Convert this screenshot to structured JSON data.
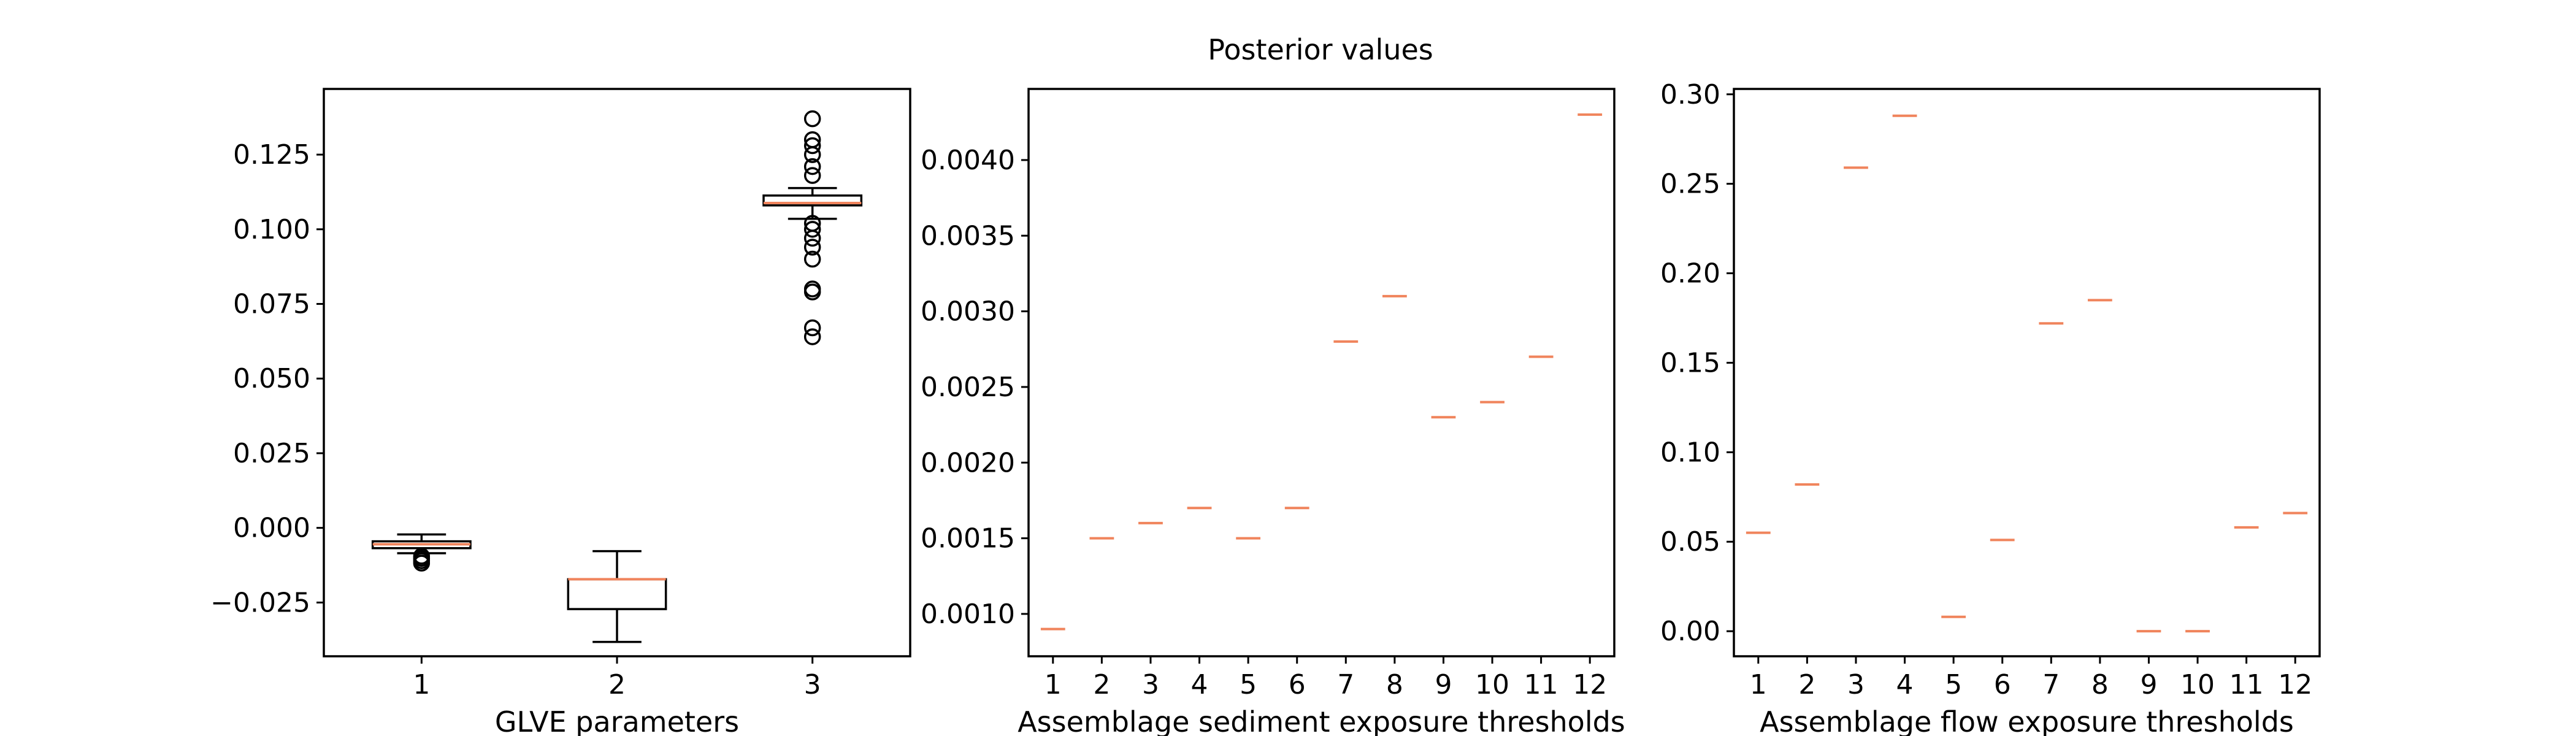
{
  "title": "Posterior values",
  "colors": {
    "median": "#f0845c",
    "frame": "#000000",
    "background": "#ffffff"
  },
  "chart_data": [
    {
      "type": "box",
      "xlabel": "GLVE parameters",
      "ylabel": "",
      "categories": [
        "1",
        "2",
        "3"
      ],
      "ylim": [
        -0.043,
        0.147
      ],
      "yticks": [
        -0.025,
        0.0,
        0.025,
        0.05,
        0.075,
        0.1,
        0.125
      ],
      "ytick_labels": [
        "−0.025",
        "0.000",
        "0.025",
        "0.050",
        "0.075",
        "0.100",
        "0.125"
      ],
      "boxes": [
        {
          "category": "1",
          "q1": -0.0068,
          "median": -0.0055,
          "q3": -0.0045,
          "whislo": -0.0085,
          "whishi": -0.0022,
          "fliers": [
            -0.0095,
            -0.0102,
            -0.011,
            -0.0118
          ]
        },
        {
          "category": "2",
          "q1": -0.0272,
          "median": -0.0172,
          "q3": -0.0172,
          "whislo": -0.0382,
          "whishi": -0.0078,
          "fliers": []
        },
        {
          "category": "3",
          "q1": 0.108,
          "median": 0.1088,
          "q3": 0.1113,
          "whislo": 0.1035,
          "whishi": 0.1138,
          "fliers": [
            0.137,
            0.13,
            0.128,
            0.125,
            0.121,
            0.118,
            0.102,
            0.1,
            0.097,
            0.094,
            0.09,
            0.08,
            0.079,
            0.067,
            0.064
          ]
        }
      ]
    },
    {
      "type": "box",
      "xlabel": "Assemblage sediment exposure thresholds",
      "ylabel": "",
      "categories": [
        "1",
        "2",
        "3",
        "4",
        "5",
        "6",
        "7",
        "8",
        "9",
        "10",
        "11",
        "12"
      ],
      "ylim": [
        0.00072,
        0.00447
      ],
      "yticks": [
        0.001,
        0.0015,
        0.002,
        0.0025,
        0.003,
        0.0035,
        0.004
      ],
      "ytick_labels": [
        "0.0010",
        "0.0015",
        "0.0020",
        "0.0025",
        "0.0030",
        "0.0035",
        "0.0040"
      ],
      "values": [
        0.0009,
        0.0015,
        0.0016,
        0.0017,
        0.0015,
        0.0017,
        0.0028,
        0.0031,
        0.0023,
        0.0024,
        0.0027,
        0.0043
      ]
    },
    {
      "type": "box",
      "xlabel": "Assemblage flow exposure thresholds",
      "ylabel": "",
      "categories": [
        "1",
        "2",
        "3",
        "4",
        "5",
        "6",
        "7",
        "8",
        "9",
        "10",
        "11",
        "12"
      ],
      "ylim": [
        -0.014,
        0.303
      ],
      "yticks": [
        0.0,
        0.05,
        0.1,
        0.15,
        0.2,
        0.25,
        0.3
      ],
      "ytick_labels": [
        "0.00",
        "0.05",
        "0.10",
        "0.15",
        "0.20",
        "0.25",
        "0.30"
      ],
      "values": [
        0.055,
        0.082,
        0.259,
        0.288,
        0.008,
        0.051,
        0.172,
        0.185,
        0.0,
        0.0,
        0.058,
        0.066
      ]
    }
  ]
}
